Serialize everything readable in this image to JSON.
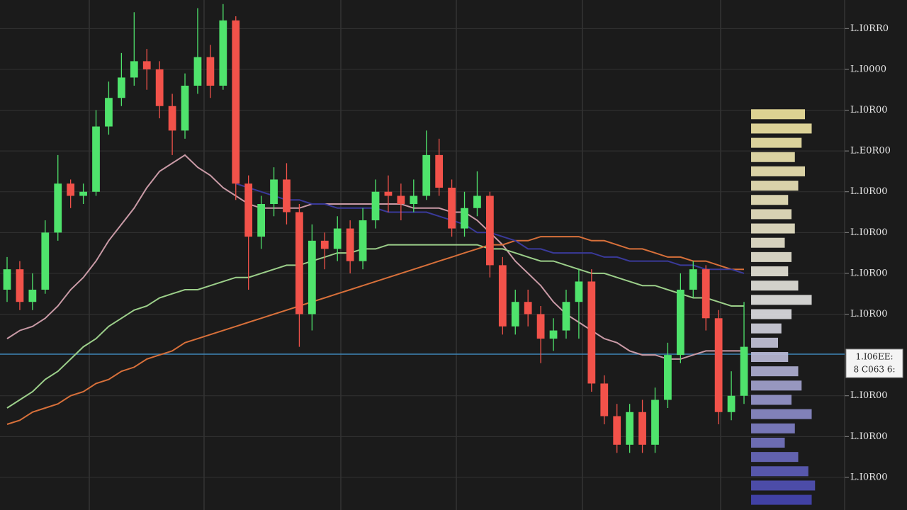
{
  "chart_data": {
    "type": "candlestick",
    "categories": [
      null,
      null,
      null,
      null,
      null,
      null,
      null,
      null,
      null,
      null,
      null,
      null,
      null,
      null,
      null,
      null,
      null,
      null,
      null,
      null,
      null,
      null,
      null,
      null,
      null,
      null,
      null,
      null,
      null,
      null,
      null,
      null,
      null,
      null,
      null,
      null,
      null,
      null,
      null,
      null,
      null,
      null,
      null,
      null,
      null,
      null,
      null,
      null,
      null,
      null,
      null,
      null,
      null,
      null,
      null,
      null,
      null,
      null,
      null
    ],
    "open": [
      4.6,
      5.1,
      4.3,
      4.6,
      6.0,
      7.2,
      6.9,
      7.0,
      8.6,
      9.3,
      9.8,
      10.2,
      10.0,
      9.1,
      8.5,
      9.6,
      10.3,
      9.6,
      11.2,
      7.2,
      5.9,
      6.7,
      7.3,
      6.5,
      4.0,
      5.8,
      5.6,
      6.1,
      5.3,
      6.3,
      7.0,
      6.9,
      6.7,
      6.9,
      7.9,
      7.1,
      6.1,
      6.6,
      6.9,
      5.2,
      3.7,
      4.3,
      4.0,
      3.4,
      3.6,
      4.3,
      4.8,
      2.3,
      1.5,
      0.8,
      1.6,
      0.8,
      1.9,
      3.0,
      4.6,
      5.1,
      3.9,
      1.6,
      2.0
    ],
    "high": [
      5.4,
      5.3,
      5.0,
      6.3,
      7.9,
      7.3,
      7.2,
      9.0,
      9.7,
      10.4,
      11.4,
      10.5,
      10.2,
      9.4,
      9.9,
      11.5,
      10.6,
      11.6,
      11.3,
      7.4,
      6.9,
      7.6,
      7.7,
      6.7,
      6.2,
      6.0,
      6.4,
      6.3,
      6.6,
      7.3,
      7.4,
      7.2,
      7.3,
      8.5,
      8.3,
      7.3,
      7.0,
      7.5,
      7.0,
      5.4,
      4.6,
      4.6,
      4.2,
      3.9,
      4.6,
      5.1,
      5.1,
      2.5,
      1.8,
      1.8,
      1.9,
      2.2,
      3.3,
      5.0,
      5.3,
      5.2,
      4.1,
      2.6,
      4.3
    ],
    "low": [
      4.3,
      4.1,
      4.1,
      4.5,
      5.8,
      6.6,
      6.7,
      6.9,
      8.4,
      9.1,
      9.6,
      9.5,
      8.8,
      7.9,
      8.3,
      9.4,
      9.3,
      9.5,
      6.8,
      4.6,
      5.6,
      6.4,
      6.2,
      3.2,
      3.6,
      5.1,
      5.3,
      5.0,
      5.1,
      6.1,
      6.5,
      6.3,
      6.5,
      6.8,
      6.9,
      5.9,
      5.9,
      6.4,
      4.9,
      3.5,
      3.5,
      3.7,
      2.8,
      3.1,
      3.4,
      3.4,
      2.1,
      1.3,
      0.6,
      0.6,
      0.6,
      0.6,
      1.7,
      2.8,
      4.4,
      3.6,
      1.3,
      1.4,
      1.8
    ],
    "close": [
      5.1,
      4.3,
      4.6,
      6.0,
      7.2,
      6.9,
      7.0,
      8.6,
      9.3,
      9.8,
      10.2,
      10.0,
      9.1,
      8.5,
      9.6,
      10.3,
      9.6,
      11.2,
      7.2,
      5.9,
      6.7,
      7.3,
      6.5,
      4.0,
      5.8,
      5.6,
      6.1,
      5.3,
      6.3,
      7.0,
      6.9,
      6.7,
      6.9,
      7.9,
      7.1,
      6.1,
      6.6,
      6.9,
      5.2,
      3.7,
      4.3,
      4.0,
      3.4,
      3.6,
      4.3,
      4.8,
      2.3,
      1.5,
      0.8,
      1.6,
      0.8,
      1.9,
      3.0,
      4.6,
      5.1,
      3.9,
      1.6,
      2.0,
      3.2
    ],
    "up_color": "#4fe36c",
    "down_color": "#f2524a",
    "series": [
      {
        "color": "#c99aa6",
        "values": [
          3.4,
          3.6,
          3.7,
          3.9,
          4.2,
          4.6,
          4.9,
          5.3,
          5.8,
          6.2,
          6.6,
          7.1,
          7.5,
          7.7,
          7.9,
          7.6,
          7.4,
          7.1,
          6.9,
          6.7,
          6.6,
          6.6,
          6.6,
          6.6,
          6.7,
          6.7,
          6.7,
          6.7,
          6.7,
          6.7,
          6.7,
          6.7,
          6.6,
          6.6,
          6.6,
          6.5,
          6.5,
          6.3,
          6.0,
          5.7,
          5.3,
          5.0,
          4.7,
          4.3,
          4.0,
          3.8,
          3.6,
          3.4,
          3.3,
          3.1,
          3.0,
          3.0,
          2.9,
          2.9,
          3.0,
          3.1,
          3.1,
          3.1,
          3.1
        ]
      },
      {
        "color": "#9ccf8a",
        "values": [
          1.7,
          1.9,
          2.1,
          2.4,
          2.6,
          2.9,
          3.2,
          3.4,
          3.7,
          3.9,
          4.1,
          4.2,
          4.4,
          4.5,
          4.6,
          4.6,
          4.7,
          4.8,
          4.9,
          4.9,
          5.0,
          5.1,
          5.2,
          5.2,
          5.3,
          5.4,
          5.5,
          5.5,
          5.6,
          5.6,
          5.7,
          5.7,
          5.7,
          5.7,
          5.7,
          5.7,
          5.7,
          5.7,
          5.6,
          5.6,
          5.5,
          5.4,
          5.3,
          5.3,
          5.2,
          5.1,
          5.0,
          5.0,
          4.9,
          4.8,
          4.7,
          4.7,
          4.6,
          4.5,
          4.4,
          4.4,
          4.3,
          4.2,
          4.2
        ]
      },
      {
        "color": "#d8703a",
        "values": [
          1.3,
          1.4,
          1.6,
          1.7,
          1.8,
          2.0,
          2.1,
          2.3,
          2.4,
          2.6,
          2.7,
          2.9,
          3.0,
          3.1,
          3.3,
          3.4,
          3.5,
          3.6,
          3.7,
          3.8,
          3.9,
          4.0,
          4.1,
          4.2,
          4.3,
          4.4,
          4.5,
          4.6,
          4.7,
          4.8,
          4.9,
          5.0,
          5.1,
          5.2,
          5.3,
          5.4,
          5.5,
          5.6,
          5.7,
          5.7,
          5.8,
          5.8,
          5.9,
          5.9,
          5.9,
          5.9,
          5.8,
          5.8,
          5.7,
          5.6,
          5.6,
          5.5,
          5.4,
          5.4,
          5.3,
          5.3,
          5.2,
          5.1,
          5.1
        ]
      },
      {
        "color": "#3a3a9a",
        "values": [
          null,
          null,
          null,
          null,
          null,
          null,
          null,
          null,
          null,
          null,
          null,
          null,
          null,
          null,
          null,
          null,
          null,
          null,
          7.2,
          7.1,
          7.0,
          6.9,
          6.8,
          6.8,
          6.7,
          6.7,
          6.6,
          6.6,
          6.6,
          6.6,
          6.5,
          6.5,
          6.5,
          6.5,
          6.4,
          6.3,
          6.2,
          6.0,
          6.0,
          5.9,
          5.8,
          5.6,
          5.6,
          5.5,
          5.5,
          5.5,
          5.5,
          5.4,
          5.4,
          5.3,
          5.3,
          5.3,
          5.3,
          5.2,
          5.2,
          5.1,
          5.1,
          5.1,
          5.0
        ]
      }
    ],
    "profile": {
      "levels": [
        8.9,
        8.55,
        8.2,
        7.85,
        7.5,
        7.15,
        6.8,
        6.45,
        6.1,
        5.75,
        5.4,
        5.05,
        4.7,
        4.35,
        4.0,
        3.65,
        3.3,
        2.95,
        2.6,
        2.25,
        1.9,
        1.55,
        1.2,
        0.85,
        0.5,
        0.15,
        -0.2,
        -0.55
      ],
      "volumes": [
        80,
        90,
        75,
        65,
        80,
        70,
        55,
        60,
        65,
        50,
        60,
        55,
        70,
        90,
        60,
        45,
        40,
        55,
        70,
        75,
        60,
        90,
        65,
        50,
        70,
        85,
        95,
        90
      ],
      "colors": [
        "#f3e7a0",
        "#e6e6e6",
        "#4646b4"
      ]
    },
    "current_price": 3.02,
    "price_label": [
      "1.I06EE:",
      "8 C063 6:"
    ],
    "ylim": [
      -0.8,
      11.7
    ],
    "yticks": [
      {
        "value": 11,
        "label": "L.I0RR0"
      },
      {
        "value": 10,
        "label": "L.I0000"
      },
      {
        "value": 9,
        "label": "L.I0R00"
      },
      {
        "value": 8,
        "label": "L.E0R00"
      },
      {
        "value": 7,
        "label": "L.I0R00"
      },
      {
        "value": 6,
        "label": "L.I0R00"
      },
      {
        "value": 5,
        "label": "L.I0R00"
      },
      {
        "value": 4,
        "label": "L.I0R00"
      },
      {
        "value": 2,
        "label": "L.I0R00"
      },
      {
        "value": 1,
        "label": "L.I0R00"
      },
      {
        "value": 0,
        "label": "L.I0R00"
      }
    ],
    "grid": true
  }
}
